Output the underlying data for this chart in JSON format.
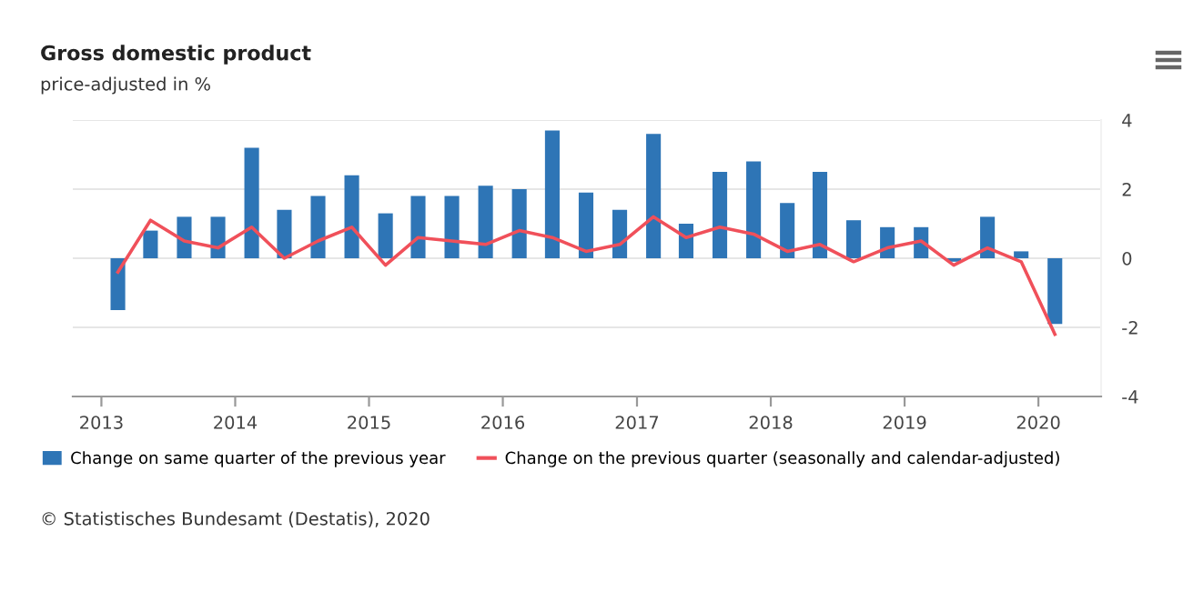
{
  "chart_data": {
    "type": "bar",
    "title": "Gross domestic product",
    "subtitle": "price-adjusted in %",
    "x": [
      "2013-02-15",
      "2013-05-15",
      "2013-08-15",
      "2013-11-15",
      "2014-02-15",
      "2014-05-15",
      "2014-08-15",
      "2014-11-15",
      "2015-02-15",
      "2015-05-15",
      "2015-08-15",
      "2015-11-15",
      "2016-02-15",
      "2016-05-15",
      "2016-08-15",
      "2016-11-15",
      "2017-02-15",
      "2017-05-15",
      "2017-08-15",
      "2017-11-15",
      "2018-02-15",
      "2018-05-15",
      "2018-08-15",
      "2018-11-15",
      "2019-02-15",
      "2019-05-15",
      "2019-08-15",
      "2019-11-15",
      "2020-02-15"
    ],
    "series": [
      {
        "name": "Change on same quarter of the previous year",
        "color": "#2e75b6",
        "values": [
          -1.5,
          0.8,
          1.2,
          1.2,
          3.2,
          1.4,
          1.8,
          2.4,
          1.3,
          1.8,
          1.8,
          2.1,
          2.0,
          3.7,
          1.9,
          1.4,
          3.6,
          1.0,
          2.5,
          2.8,
          1.6,
          2.5,
          1.1,
          0.9,
          0.9,
          -0.1,
          1.2,
          0.2,
          -1.9
        ]
      },
      {
        "name": "Change on the previous quarter (seasonally and calendar-adjusted)",
        "type": "line",
        "color": "#f0505a",
        "values": [
          -0.4,
          1.1,
          0.5,
          0.3,
          0.9,
          0.0,
          0.5,
          0.9,
          -0.2,
          0.6,
          0.5,
          0.4,
          0.8,
          0.6,
          0.2,
          0.4,
          1.2,
          0.6,
          0.9,
          0.7,
          0.2,
          0.4,
          -0.1,
          0.3,
          0.5,
          -0.2,
          0.3,
          -0.1,
          -2.2
        ]
      }
    ],
    "xlim": [
      "2012-10-15",
      "2020-06-20"
    ],
    "xticks": [
      "2013",
      "2014",
      "2015",
      "2016",
      "2017",
      "2018",
      "2019",
      "2020"
    ],
    "ylim": [
      -4,
      4
    ],
    "yticks": [
      -4,
      -2,
      0,
      2,
      4
    ],
    "grid": "y",
    "legend": "bottom",
    "marker": "none",
    "line_style": "solid",
    "annotations": [
      "© Statistisches Bundesamt (Destatis), 2020"
    ]
  }
}
